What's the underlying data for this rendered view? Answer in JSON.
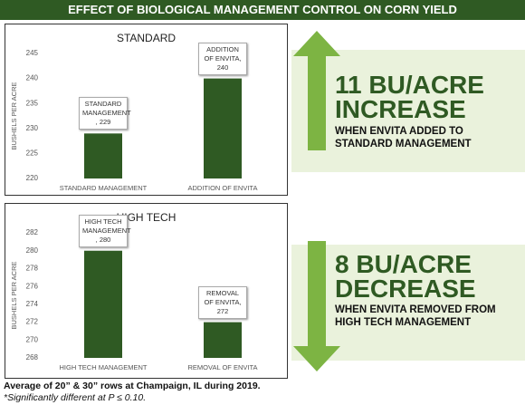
{
  "header": {
    "title": "EFFECT OF BIOLOGICAL MANAGEMENT CONTROL ON CORN YIELD"
  },
  "chart_data": [
    {
      "type": "bar",
      "title": "STANDARD",
      "y_label": "BUSHELS PER ACRE",
      "categories": [
        "STANDARD MANAGEMENT",
        "ADDITION OF ENVITA"
      ],
      "values": [
        229,
        240
      ],
      "value_labels": [
        "STANDARD MANAGEMENT , 229",
        "ADDITION OF ENVITA, 240"
      ],
      "color": "#2f5a23",
      "ylim": [
        220,
        245
      ],
      "yticks": [
        220,
        225,
        230,
        235,
        240,
        245
      ],
      "grid": false
    },
    {
      "type": "bar",
      "title": "HIGH TECH",
      "y_label": "BUSHELS PER ACRE",
      "categories": [
        "HIGH TECH MANAGEMENT",
        "REMOVAL OF ENVITA"
      ],
      "values": [
        280,
        272
      ],
      "value_labels": [
        "HIGH TECH MANAGEMENT , 280",
        "REMOVAL OF ENVITA, 272"
      ],
      "color": "#2f5a23",
      "ylim": [
        268,
        282
      ],
      "yticks": [
        268,
        270,
        272,
        274,
        276,
        278,
        280,
        282
      ],
      "grid": false
    }
  ],
  "callouts": [
    {
      "headline": [
        "11 BU/ACRE",
        "INCREASE"
      ],
      "note": [
        "WHEN ENVITA ADDED TO",
        "STANDARD MANAGEMENT"
      ]
    },
    {
      "headline": [
        "8 BU/ACRE",
        "DECREASE"
      ],
      "note": [
        "WHEN ENVITA REMOVED FROM",
        "HIGH TECH MANAGEMENT"
      ]
    }
  ],
  "footer": {
    "note": "Average of 20” & 30” rows at Champaign, IL during 2019.",
    "significance": "*Significantly different at P ≤ 0.10."
  }
}
